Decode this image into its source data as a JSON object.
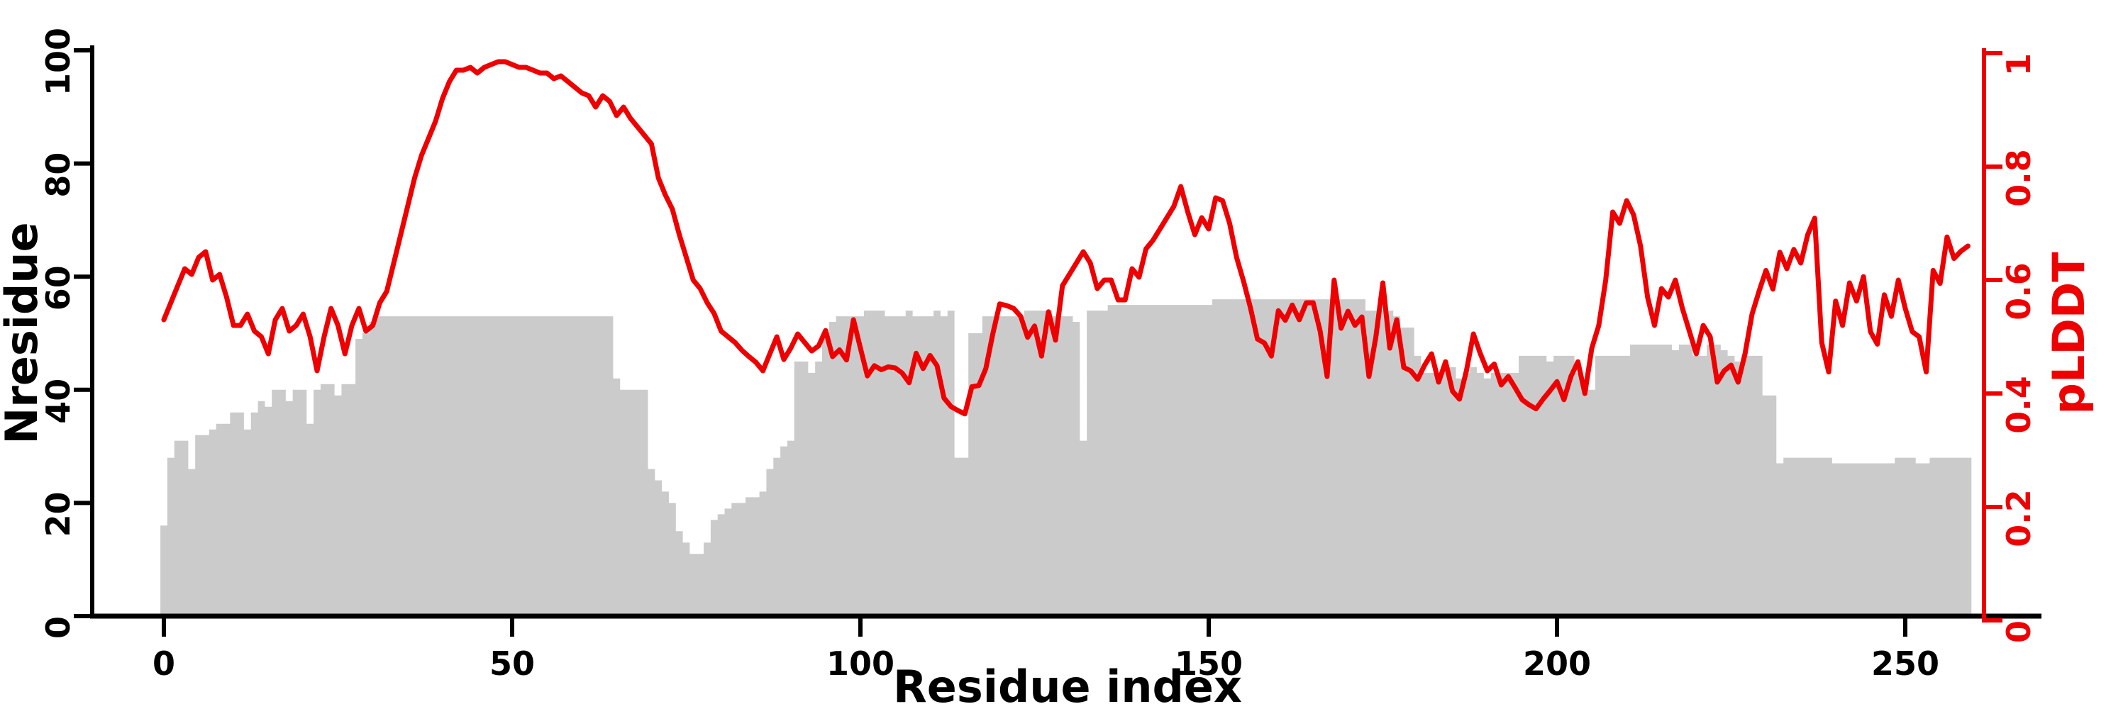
{
  "page": {
    "background": "#ffffff"
  },
  "chart_data": {
    "type": "bar+line",
    "title": "",
    "xlabel": "Residue index",
    "ylabel_left": "Nresidue",
    "ylabel_right": "pLDDT",
    "x_start": 0,
    "xlim": [
      0,
      260
    ],
    "ylim_left": [
      0,
      100
    ],
    "ylim_right": [
      0,
      1
    ],
    "grid": false,
    "legend": null,
    "x_ticks": [
      "0",
      "50",
      "100",
      "150",
      "200",
      "250"
    ],
    "x_tick_values": [
      0,
      50,
      100,
      150,
      200,
      250
    ],
    "y_ticks_left": [
      "0",
      "20",
      "40",
      "60",
      "80",
      "100"
    ],
    "y_tick_values_left": [
      0,
      20,
      40,
      60,
      80,
      100
    ],
    "y_ticks_right": [
      "0",
      "0.2",
      "0.4",
      "0.6",
      "0.8",
      "1"
    ],
    "y_tick_values_right": [
      0,
      0.2,
      0.4,
      0.6,
      0.8,
      1
    ],
    "axis_color_left": "#000000",
    "axis_color_right": "#ee0000",
    "series": [
      {
        "name": "Nresidue",
        "type": "bar",
        "axis": "left",
        "color": "#cbcbcb",
        "values": [
          16,
          28,
          31,
          31,
          26,
          32,
          32,
          33,
          34,
          34,
          36,
          36,
          33,
          36,
          38,
          37,
          40,
          40,
          38,
          40,
          40,
          34,
          40,
          41,
          41,
          39,
          41,
          41,
          49,
          50,
          52,
          53,
          53,
          53,
          53,
          53,
          53,
          53,
          53,
          53,
          53,
          53,
          53,
          53,
          53,
          53,
          53,
          53,
          53,
          53,
          53,
          53,
          53,
          53,
          53,
          53,
          53,
          53,
          53,
          53,
          53,
          53,
          53,
          53,
          53,
          42,
          40,
          40,
          40,
          40,
          26,
          24,
          22,
          20,
          15,
          13,
          11,
          11,
          13,
          17,
          18,
          19,
          20,
          20,
          21,
          21,
          22,
          26,
          28,
          30,
          31,
          45,
          45,
          43,
          45,
          49,
          52,
          53,
          53,
          53,
          53,
          54,
          54,
          54,
          53,
          53,
          53,
          54,
          53,
          53,
          53,
          54,
          53,
          54,
          28,
          28,
          50,
          50,
          53,
          53,
          53,
          53,
          53,
          53,
          54,
          54,
          54,
          54,
          53,
          53,
          53,
          52,
          31,
          54,
          54,
          54,
          55,
          55,
          55,
          55,
          55,
          55,
          55,
          55,
          55,
          55,
          55,
          55,
          55,
          55,
          55,
          56,
          56,
          56,
          56,
          56,
          56,
          56,
          56,
          56,
          56,
          56,
          56,
          56,
          56,
          56,
          56,
          56,
          56,
          56,
          56,
          56,
          56,
          54,
          54,
          54,
          54,
          53,
          51,
          51,
          46,
          43,
          43,
          43,
          44,
          44,
          42,
          43,
          44,
          43,
          42,
          43,
          43,
          43,
          43,
          46,
          46,
          46,
          46,
          45,
          46,
          46,
          46,
          43,
          40,
          40,
          46,
          46,
          46,
          46,
          46,
          48,
          48,
          48,
          48,
          48,
          48,
          47,
          48,
          48,
          46,
          46,
          48,
          48,
          47,
          46,
          45,
          46,
          46,
          46,
          39,
          39,
          27,
          28,
          28,
          28,
          28,
          28,
          28,
          28,
          27,
          27,
          27,
          27,
          27,
          27,
          27,
          27,
          27,
          28,
          28,
          28,
          27,
          27,
          28,
          28,
          28,
          28,
          28,
          28
        ]
      },
      {
        "name": "pLDDT",
        "type": "line",
        "axis": "right",
        "color": "#ee0000",
        "values": [
          0.53,
          0.56,
          0.59,
          0.62,
          0.61,
          0.64,
          0.65,
          0.6,
          0.61,
          0.57,
          0.52,
          0.52,
          0.54,
          0.51,
          0.5,
          0.47,
          0.53,
          0.55,
          0.51,
          0.52,
          0.54,
          0.5,
          0.44,
          0.5,
          0.55,
          0.52,
          0.47,
          0.52,
          0.55,
          0.51,
          0.52,
          0.56,
          0.58,
          0.63,
          0.68,
          0.73,
          0.78,
          0.82,
          0.85,
          0.88,
          0.92,
          0.95,
          0.97,
          0.97,
          0.975,
          0.965,
          0.975,
          0.98,
          0.985,
          0.985,
          0.98,
          0.975,
          0.975,
          0.97,
          0.965,
          0.965,
          0.955,
          0.96,
          0.95,
          0.94,
          0.93,
          0.925,
          0.905,
          0.925,
          0.915,
          0.89,
          0.905,
          0.885,
          0.87,
          0.855,
          0.84,
          0.78,
          0.75,
          0.725,
          0.68,
          0.64,
          0.6,
          0.585,
          0.56,
          0.541,
          0.51,
          0.5,
          0.49,
          0.476,
          0.465,
          0.455,
          0.44,
          0.47,
          0.5,
          0.46,
          0.48,
          0.505,
          0.49,
          0.475,
          0.484,
          0.511,
          0.465,
          0.477,
          0.459,
          0.53,
          0.48,
          0.431,
          0.449,
          0.442,
          0.447,
          0.445,
          0.436,
          0.419,
          0.471,
          0.444,
          0.467,
          0.449,
          0.392,
          0.377,
          0.37,
          0.364,
          0.412,
          0.414,
          0.444,
          0.505,
          0.558,
          0.555,
          0.55,
          0.536,
          0.499,
          0.519,
          0.466,
          0.544,
          0.494,
          0.59,
          0.61,
          0.63,
          0.65,
          0.63,
          0.585,
          0.6,
          0.6,
          0.565,
          0.565,
          0.62,
          0.605,
          0.655,
          0.67,
          0.69,
          0.71,
          0.73,
          0.765,
          0.72,
          0.68,
          0.71,
          0.69,
          0.745,
          0.74,
          0.7,
          0.64,
          0.598,
          0.551,
          0.496,
          0.489,
          0.466,
          0.546,
          0.529,
          0.556,
          0.53,
          0.56,
          0.56,
          0.51,
          0.43,
          0.6,
          0.515,
          0.545,
          0.52,
          0.535,
          0.43,
          0.5,
          0.595,
          0.48,
          0.53,
          0.446,
          0.44,
          0.425,
          0.45,
          0.47,
          0.42,
          0.456,
          0.404,
          0.39,
          0.44,
          0.505,
          0.47,
          0.44,
          0.452,
          0.415,
          0.43,
          0.41,
          0.389,
          0.38,
          0.373,
          0.39,
          0.405,
          0.421,
          0.389,
          0.43,
          0.456,
          0.4,
          0.48,
          0.52,
          0.6,
          0.72,
          0.7,
          0.74,
          0.715,
          0.66,
          0.57,
          0.52,
          0.585,
          0.57,
          0.6,
          0.55,
          0.51,
          0.47,
          0.52,
          0.5,
          0.42,
          0.44,
          0.45,
          0.42,
          0.47,
          0.54,
          0.58,
          0.617,
          0.584,
          0.649,
          0.62,
          0.654,
          0.63,
          0.68,
          0.709,
          0.49,
          0.438,
          0.563,
          0.52,
          0.595,
          0.563,
          0.606,
          0.509,
          0.487,
          0.574,
          0.536,
          0.6,
          0.55,
          0.509,
          0.5,
          0.438,
          0.617,
          0.594,
          0.676,
          0.638,
          0.651,
          0.66
        ]
      }
    ]
  }
}
